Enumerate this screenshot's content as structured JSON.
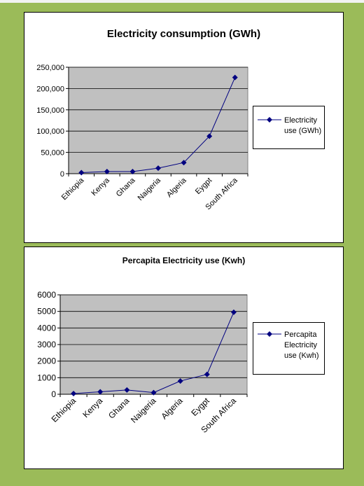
{
  "chart_data": [
    {
      "type": "line",
      "title": "Electricity consumption  (GWh)",
      "categories": [
        "Ethiopia",
        "Kenya",
        "Ghana",
        "Naigeria",
        "Algeria",
        "Eygpt",
        "South Africa"
      ],
      "series": [
        {
          "name": "Electricity use (GWh)",
          "values": [
            2500,
            5000,
            5000,
            13000,
            26000,
            88000,
            226000
          ]
        }
      ],
      "y_ticks": [
        "0",
        "50,000",
        "100,000",
        "150,000",
        "200,000",
        "250,000"
      ],
      "ylim": [
        0,
        250000
      ],
      "grid": true,
      "legend": "right",
      "color": "#000080",
      "plot_background": "#c0c0c0"
    },
    {
      "type": "line",
      "title": "Percapita Electricity use (Kwh)",
      "categories": [
        "Ethiopia",
        "Kenya",
        "Ghana",
        "Naigeria",
        "Algeria",
        "Eygpt",
        "South Africa"
      ],
      "series": [
        {
          "name": "Percapita Electricity use (Kwh)",
          "values": [
            40,
            150,
            260,
            100,
            800,
            1200,
            4950
          ]
        }
      ],
      "y_ticks": [
        "0",
        "1000",
        "2000",
        "3000",
        "4000",
        "5000",
        "6000"
      ],
      "ylim": [
        0,
        6000
      ],
      "grid": true,
      "legend": "right",
      "color": "#000080",
      "plot_background": "#c0c0c0"
    }
  ]
}
